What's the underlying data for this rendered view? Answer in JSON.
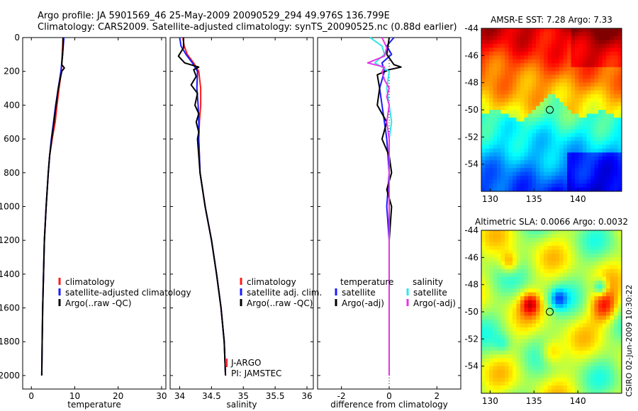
{
  "header": {
    "line1": "Argo profile: JA 5901569_46 25-May-2009 20090529_294 49.976S 136.799E",
    "line2": "Climatology: CARS2009. Satellite-adjusted climatology: synTS_20090525.nc (0.88d earlier)"
  },
  "side_label": "CSIRO 02-Jun-2009 10:30:22",
  "colors": {
    "climatology": "#ff1a1a",
    "satellite": "#1a1aff",
    "argo": "#000000",
    "sal_sat": "#33e6e6",
    "sal_argo": "#e633e6"
  },
  "chart_data": [
    {
      "type": "line",
      "name": "temperature-profile",
      "xlabel": "temperature",
      "ylabel": "",
      "xlim": [
        -2,
        31
      ],
      "ylim": [
        2080,
        0
      ],
      "xticks": [
        0,
        10,
        20,
        30
      ],
      "xticklabels": [
        "0",
        "10",
        "20",
        "30"
      ],
      "yticks": [
        0,
        200,
        400,
        600,
        800,
        1000,
        1200,
        1400,
        1600,
        1800,
        2000
      ],
      "yticklabels": [
        "0",
        "200",
        "400",
        "600",
        "800",
        "1000",
        "1200",
        "1400",
        "1600",
        "1800",
        "2000"
      ],
      "legend": [
        "climatology",
        "satellite-adjusted climatology",
        "Argo(..raw -QC)"
      ],
      "series": [
        {
          "name": "climatology",
          "color": "#ff1a1a",
          "y": [
            0,
            100,
            200,
            300,
            400,
            500,
            600,
            700,
            800,
            1000,
            1200,
            1400,
            1600,
            1800,
            2000
          ],
          "x": [
            7.3,
            7.1,
            6.9,
            6.4,
            5.9,
            5.5,
            4.8,
            4.2,
            3.9,
            3.4,
            3.0,
            2.8,
            2.6,
            2.5,
            2.4
          ]
        },
        {
          "name": "satellite",
          "color": "#1a1aff",
          "y": [
            0,
            100,
            200,
            300,
            400,
            500,
            600,
            700,
            800,
            1000,
            1200,
            1400,
            1600,
            1800,
            2000
          ],
          "x": [
            7.5,
            7.2,
            6.8,
            6.2,
            5.6,
            5.1,
            4.6,
            4.2,
            3.9,
            3.4,
            3.0,
            2.8,
            2.6,
            2.5,
            2.4
          ]
        },
        {
          "name": "argo",
          "color": "#000000",
          "y": [
            0,
            50,
            100,
            160,
            180,
            200,
            300,
            400,
            500,
            600,
            700,
            800,
            1000,
            1200,
            1400,
            1600,
            1800,
            2000
          ],
          "x": [
            7.3,
            7.3,
            7.2,
            7.0,
            7.6,
            7.0,
            6.2,
            5.7,
            5.2,
            4.7,
            4.2,
            3.9,
            3.4,
            3.0,
            2.8,
            2.6,
            2.5,
            2.4
          ]
        }
      ]
    },
    {
      "type": "line",
      "name": "salinity-profile",
      "xlabel": "salinity",
      "xlim": [
        33.85,
        36.1
      ],
      "ylim": [
        2080,
        0
      ],
      "xticks": [
        34,
        34.5,
        35,
        35.5,
        36
      ],
      "xticklabels": [
        "34",
        "34.5",
        "35",
        "35.5",
        "36"
      ],
      "legend": [
        "climatology",
        "satellite adj. clim.",
        "Argo(..raw -QC)"
      ],
      "annotations": [
        "J-ARGO",
        "PI: JAMSTEC"
      ],
      "series": [
        {
          "name": "climatology",
          "color": "#ff1a1a",
          "y": [
            0,
            50,
            100,
            150,
            200,
            300,
            400,
            500,
            600,
            800,
            1000,
            1200,
            1400,
            1600,
            1800,
            2000
          ],
          "x": [
            34.05,
            34.07,
            34.12,
            34.22,
            34.3,
            34.33,
            34.33,
            34.31,
            34.3,
            34.32,
            34.4,
            34.5,
            34.58,
            34.65,
            34.7,
            34.72
          ]
        },
        {
          "name": "satellite",
          "color": "#1a1aff",
          "y": [
            0,
            50,
            100,
            150,
            200,
            300,
            400,
            500,
            600,
            800,
            1000,
            1200,
            1400,
            1600,
            1800,
            2000
          ],
          "x": [
            34.0,
            34.02,
            34.1,
            34.2,
            34.28,
            34.27,
            34.29,
            34.3,
            34.3,
            34.32,
            34.4,
            34.5,
            34.58,
            34.65,
            34.7,
            34.72
          ]
        },
        {
          "name": "argo",
          "color": "#000000",
          "y": [
            0,
            60,
            110,
            150,
            175,
            190,
            230,
            280,
            330,
            400,
            450,
            500,
            560,
            600,
            700,
            800,
            1000,
            1200,
            1400,
            1600,
            1800,
            2000
          ],
          "x": [
            34.06,
            34.06,
            33.98,
            34.08,
            34.3,
            34.22,
            34.26,
            34.18,
            34.28,
            34.24,
            34.3,
            34.26,
            34.3,
            34.28,
            34.3,
            34.32,
            34.4,
            34.5,
            34.58,
            34.65,
            34.7,
            34.72
          ]
        }
      ]
    },
    {
      "type": "line",
      "name": "difference-profile",
      "xlabel": "difference from climatology",
      "xlim": [
        -3,
        3
      ],
      "ylim": [
        2080,
        0
      ],
      "xticks": [
        -2,
        0,
        2
      ],
      "xticklabels": [
        "-2",
        "0",
        "2"
      ],
      "legend_temperature_title": "temperature",
      "legend_salinity_title": "salinity",
      "legend_temperature": [
        "satellite",
        "Argo(-adj)"
      ],
      "legend_salinity": [
        "satellite",
        "Argo(-adj)"
      ],
      "series": [
        {
          "name": "temperature-satellite",
          "color": "#1a1aff",
          "y": [
            0,
            50,
            100,
            150,
            200,
            300,
            400,
            500,
            600,
            800,
            1000,
            1200,
            1500,
            2000
          ],
          "x": [
            0.2,
            -0.1,
            0.1,
            -0.3,
            -0.2,
            -0.4,
            -0.3,
            -0.2,
            -0.1,
            0.0,
            -0.1,
            0.0,
            0.0,
            0.0
          ]
        },
        {
          "name": "temperature-argo",
          "color": "#000000",
          "y": [
            0,
            100,
            160,
            175,
            190,
            220,
            300,
            400,
            500,
            600,
            700,
            800,
            900,
            1000,
            1200,
            1500,
            2000
          ],
          "x": [
            0.0,
            -0.1,
            0.2,
            0.5,
            0.0,
            -0.5,
            -0.4,
            -0.5,
            -0.1,
            -0.3,
            0.0,
            0.1,
            -0.1,
            0.1,
            0.0,
            0.0,
            0.0
          ]
        },
        {
          "name": "salinity-satellite",
          "color": "#33e6e6",
          "y": [
            0,
            50,
            100,
            150,
            200,
            300,
            400,
            500,
            600,
            800,
            1000,
            1500,
            2000
          ],
          "x": [
            -0.8,
            -0.3,
            -0.2,
            -0.6,
            0.0,
            -0.1,
            0.0,
            0.1,
            0.0,
            0.0,
            0.0,
            0.0,
            0.0
          ]
        },
        {
          "name": "salinity-argo",
          "color": "#e633e6",
          "y": [
            0,
            60,
            110,
            150,
            175,
            200,
            250,
            300,
            350,
            400,
            500,
            600,
            800,
            1000,
            1500,
            2000
          ],
          "x": [
            -0.3,
            -0.1,
            -0.2,
            -0.9,
            -0.2,
            -0.3,
            -0.2,
            0.0,
            -0.1,
            0.0,
            -0.1,
            0.0,
            0.0,
            0.0,
            0.0,
            0.0
          ]
        }
      ]
    },
    {
      "type": "heatmap",
      "name": "sst-map",
      "title": "AMSR-E SST: 7.28 Argo: 7.33",
      "xlim": [
        129,
        145
      ],
      "ylim": [
        -56,
        -44
      ],
      "xticks": [
        130,
        135,
        140
      ],
      "xticklabels": [
        "130",
        "135",
        "140"
      ],
      "yticks": [
        -44,
        -46,
        -48,
        -50,
        -52,
        -54
      ],
      "yticklabels": [
        "-44",
        "-46",
        "-48",
        "-50",
        "-52",
        "-54"
      ],
      "marker": {
        "lon": 136.8,
        "lat": -50.0
      }
    },
    {
      "type": "heatmap",
      "name": "sla-map",
      "title": "Altimetric SLA: 0.0066 Argo: 0.0032",
      "xlim": [
        129,
        145
      ],
      "ylim": [
        -56,
        -44
      ],
      "xticks": [
        130,
        135,
        140
      ],
      "xticklabels": [
        "130",
        "135",
        "140"
      ],
      "yticks": [
        -44,
        -46,
        -48,
        -50,
        -52,
        -54
      ],
      "yticklabels": [
        "-44",
        "-46",
        "-48",
        "-50",
        "-52",
        "-54"
      ],
      "marker": {
        "lon": 136.8,
        "lat": -50.0
      }
    }
  ]
}
